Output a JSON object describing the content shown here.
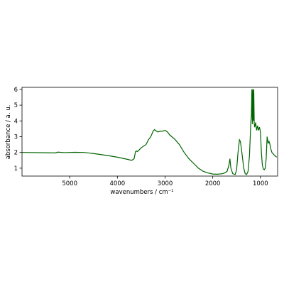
{
  "chart_data": {
    "type": "line",
    "xlabel": "wavenumbers / cm⁻¹",
    "ylabel": "absorbance / a. u.",
    "color": "#006400",
    "x": [
      6000,
      5500,
      5300,
      5250,
      5100,
      4900,
      4700,
      4500,
      4200,
      4000,
      3800,
      3700,
      3650,
      3620,
      3600,
      3580,
      3500,
      3400,
      3350,
      3300,
      3250,
      3220,
      3180,
      3150,
      3100,
      3050,
      3000,
      2950,
      2900,
      2800,
      2700,
      2600,
      2500,
      2400,
      2300,
      2200,
      2100,
      2000,
      1900,
      1800,
      1750,
      1700,
      1660,
      1640,
      1620,
      1580,
      1530,
      1500,
      1470,
      1440,
      1420,
      1390,
      1350,
      1320,
      1290,
      1260,
      1230,
      1200,
      1190,
      1180,
      1170,
      1160,
      1150,
      1140,
      1130,
      1120,
      1100,
      1080,
      1060,
      1040,
      1020,
      1000,
      980,
      960,
      940,
      920,
      900,
      880,
      860,
      840,
      820,
      800,
      780,
      760,
      700,
      660
    ],
    "values": [
      2.0,
      1.98,
      1.97,
      2.02,
      1.99,
      2.01,
      2.0,
      1.93,
      1.8,
      1.7,
      1.57,
      1.5,
      1.6,
      2.05,
      2.1,
      2.05,
      2.3,
      2.5,
      2.8,
      3.0,
      3.35,
      3.45,
      3.35,
      3.3,
      3.35,
      3.35,
      3.4,
      3.3,
      3.1,
      2.85,
      2.5,
      2.0,
      1.6,
      1.3,
      1.0,
      0.8,
      0.7,
      0.63,
      0.62,
      0.65,
      0.7,
      0.8,
      1.2,
      1.6,
      1.0,
      0.65,
      0.6,
      0.9,
      2.0,
      2.8,
      2.7,
      2.0,
      1.0,
      0.65,
      0.6,
      0.8,
      1.8,
      4.0,
      4.3,
      6.0,
      3.8,
      6.0,
      4.0,
      6.0,
      3.8,
      3.6,
      3.9,
      3.4,
      3.7,
      3.4,
      3.6,
      3.3,
      2.0,
      1.2,
      0.95,
      0.9,
      1.0,
      1.6,
      3.0,
      2.6,
      2.7,
      2.5,
      2.2,
      2.0,
      1.8,
      1.7
    ],
    "xlim": [
      6000,
      640
    ],
    "xticks": [
      5000,
      4000,
      3000,
      2000,
      1000
    ],
    "ylim": [
      0.5,
      6.13
    ],
    "yticks": [
      1,
      2,
      3,
      4,
      5,
      6
    ],
    "grid": false
  }
}
